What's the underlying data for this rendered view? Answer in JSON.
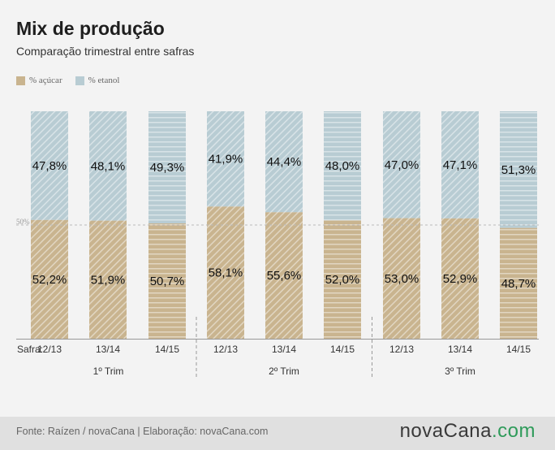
{
  "header": {
    "title": "Mix de produção",
    "subtitle": "Comparação trimestral entre safras"
  },
  "legend": [
    {
      "label": "% açúcar",
      "color": "#c9b48f"
    },
    {
      "label": "% etanol",
      "color": "#b8ccd3"
    }
  ],
  "axis": {
    "safra_label": "Safra:",
    "reference_label": "50%"
  },
  "footer": {
    "source": "Fonte: Raízen / novaCana | Elaboração: novaCana.com",
    "logo_main": "novaCana",
    "logo_suffix": ".com"
  },
  "chart_data": {
    "type": "bar",
    "stacked": true,
    "percent": true,
    "ylim": [
      0,
      100
    ],
    "reference_line": 50,
    "groups": [
      {
        "label": "1º Trim",
        "categories": [
          "12/13",
          "13/14",
          "14/15"
        ]
      },
      {
        "label": "2º Trim",
        "categories": [
          "12/13",
          "13/14",
          "14/15"
        ]
      },
      {
        "label": "3º Trim",
        "categories": [
          "12/13",
          "13/14",
          "14/15"
        ]
      }
    ],
    "series": [
      {
        "name": "% açúcar",
        "color": "#c9b48f",
        "values": [
          52.2,
          51.9,
          50.7,
          58.1,
          55.6,
          52.0,
          53.0,
          52.9,
          48.7
        ],
        "labels": [
          "52,2%",
          "51,9%",
          "50,7%",
          "58,1%",
          "55,6%",
          "52,0%",
          "53,0%",
          "52,9%",
          "48,7%"
        ]
      },
      {
        "name": "% etanol",
        "color": "#b8ccd3",
        "values": [
          47.8,
          48.1,
          49.3,
          41.9,
          44.4,
          48.0,
          47.0,
          47.1,
          51.3
        ],
        "labels": [
          "47,8%",
          "48,1%",
          "49,3%",
          "41,9%",
          "44,4%",
          "48,0%",
          "47,0%",
          "47,1%",
          "51,3%"
        ]
      }
    ],
    "patterns": [
      "diagonal",
      "diagonal",
      "horizontal"
    ]
  }
}
